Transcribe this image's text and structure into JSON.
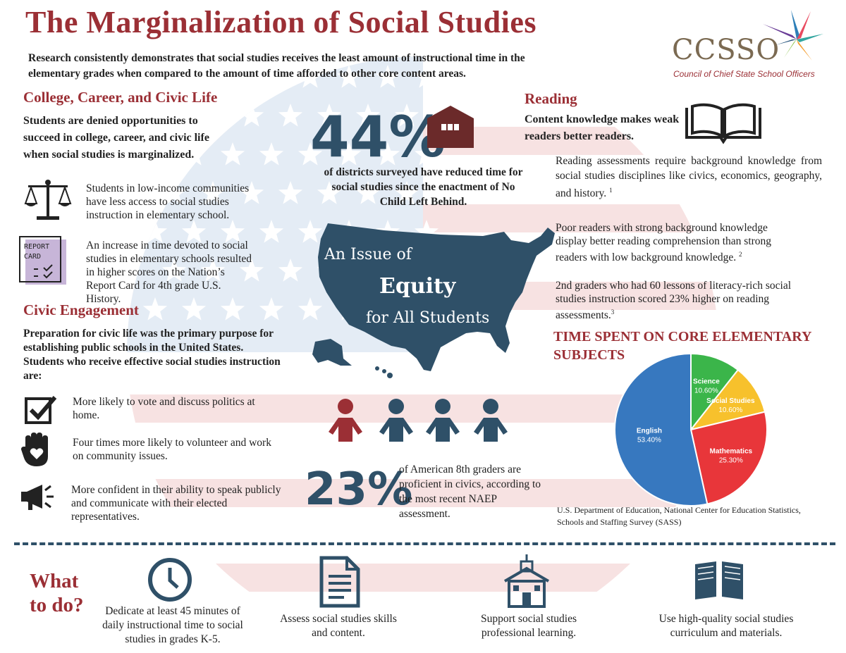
{
  "header": {
    "title": "The Marginalization of Social Studies",
    "intro": "Research consistently demonstrates that social studies receives the least amount of instructional time in the elementary grades when compared to the amount of time afforded to other core content areas.",
    "logo_text": "CCSSO",
    "logo_subtitle": "Council of Chief State School Officers"
  },
  "college": {
    "heading": "College, Career, and Civic Life",
    "lead": "Students are denied opportunities to succeed in college, career, and civic life when social studies is marginalized.",
    "items": [
      {
        "icon": "scales-icon",
        "text": "Students in low-income communities have less access to social studies instruction in elementary school."
      },
      {
        "icon": "report-card-icon",
        "text": "An increase in time devoted to social studies in elementary schools resulted in higher scores on the Nation’s Report Card for 4th grade U.S. History.",
        "icon_text_1": "REPORT",
        "icon_text_2": "CARD"
      }
    ]
  },
  "civic": {
    "heading": "Civic Engagement",
    "lead": "Preparation for civic life was the primary purpose for establishing public schools in the United States. Students who receive effective social studies instruction are:",
    "items": [
      {
        "icon": "checkbox-icon",
        "text": "More likely to vote and discuss politics at home."
      },
      {
        "icon": "hand-heart-icon",
        "text": "Four times more likely to volunteer and work on community issues."
      },
      {
        "icon": "megaphone-icon",
        "text": "More confident in their ability to speak publicly and communicate with their elected representatives."
      }
    ]
  },
  "center": {
    "stat1_value": "44%",
    "stat1_text": "of districts surveyed have reduced time for social studies since the enactment of No Child Left Behind.",
    "map_line1": "An Issue of",
    "map_line2": "Equity",
    "map_line3": "for All Students",
    "stat2_value": "23%",
    "stat2_text": "of American 8th graders are proficient in civics, according to the most recent NAEP assessment.",
    "people_highlighted": 1,
    "people_total": 4
  },
  "reading": {
    "heading": "Reading",
    "lead": "Content knowledge makes weak readers better readers.",
    "items": [
      {
        "text": "Reading assessments require background knowledge from social studies disciplines like civics, economics, geography, and history.",
        "note": "1"
      },
      {
        "text": "Poor readers with strong background knowledge display better reading comprehension than strong readers with low background knowledge.",
        "note": "2"
      },
      {
        "text": "2nd graders who had 60 lessons of literacy-rich social studies instruction scored 23% higher on reading assessments.",
        "note": "3"
      }
    ]
  },
  "chart_data": {
    "type": "pie",
    "title": "TIME SPENT ON CORE ELEMENTARY SUBJECTS",
    "slices": [
      {
        "label": "Science",
        "display": "10.60%",
        "value": 10.6,
        "color": "#3bb54a"
      },
      {
        "label": "Social Studies",
        "display": "10.60%",
        "value": 10.6,
        "color": "#f7c12c"
      },
      {
        "label": "Mathematics",
        "display": "25.30%",
        "value": 25.3,
        "color": "#e8363a"
      },
      {
        "label": "English",
        "display": "53.40%",
        "value": 53.4,
        "color": "#3778bf"
      }
    ],
    "source": "U.S. Department of Education, National Center for Education Statistics, Schools and Staffing Survey (SASS)"
  },
  "todo": {
    "heading_line1": "What",
    "heading_line2": "to do?",
    "items": [
      {
        "icon": "clock-icon",
        "text": "Dedicate at least 45 minutes of daily instructional time to social studies in grades K-5."
      },
      {
        "icon": "document-icon",
        "text": "Assess social studies skills and content."
      },
      {
        "icon": "schoolhouse-icon",
        "text": "Support social studies professional learning."
      },
      {
        "icon": "open-book-icon",
        "text": "Use high-quality social studies curriculum and materials."
      }
    ]
  },
  "colors": {
    "red": "#9b2f35",
    "navy": "#2f5068",
    "flag_blue": "#e4ecf5",
    "flag_stripe": "#f7e2e2"
  }
}
